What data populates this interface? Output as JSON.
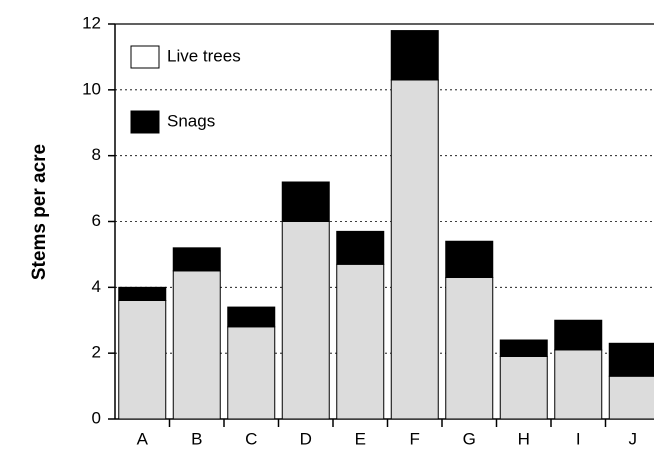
{
  "chart_data": {
    "type": "stacked_bar",
    "ylabel": "Stems per acre",
    "categories": [
      "A",
      "B",
      "C",
      "D",
      "E",
      "F",
      "G",
      "H",
      "I",
      "J"
    ],
    "series": [
      {
        "name": "Live trees",
        "color": "#dcdcdc",
        "values": [
          3.6,
          4.5,
          2.8,
          6.0,
          4.7,
          10.3,
          4.3,
          1.9,
          2.1,
          1.3
        ]
      },
      {
        "name": "Snags",
        "color": "#000000",
        "values": [
          0.4,
          0.7,
          0.6,
          1.2,
          1.0,
          1.5,
          1.1,
          0.5,
          0.9,
          1.0
        ]
      }
    ],
    "ylim": [
      0,
      12
    ],
    "yticks": [
      0,
      2,
      4,
      6,
      8,
      10,
      12
    ],
    "grid": true,
    "legend": "upper left"
  }
}
